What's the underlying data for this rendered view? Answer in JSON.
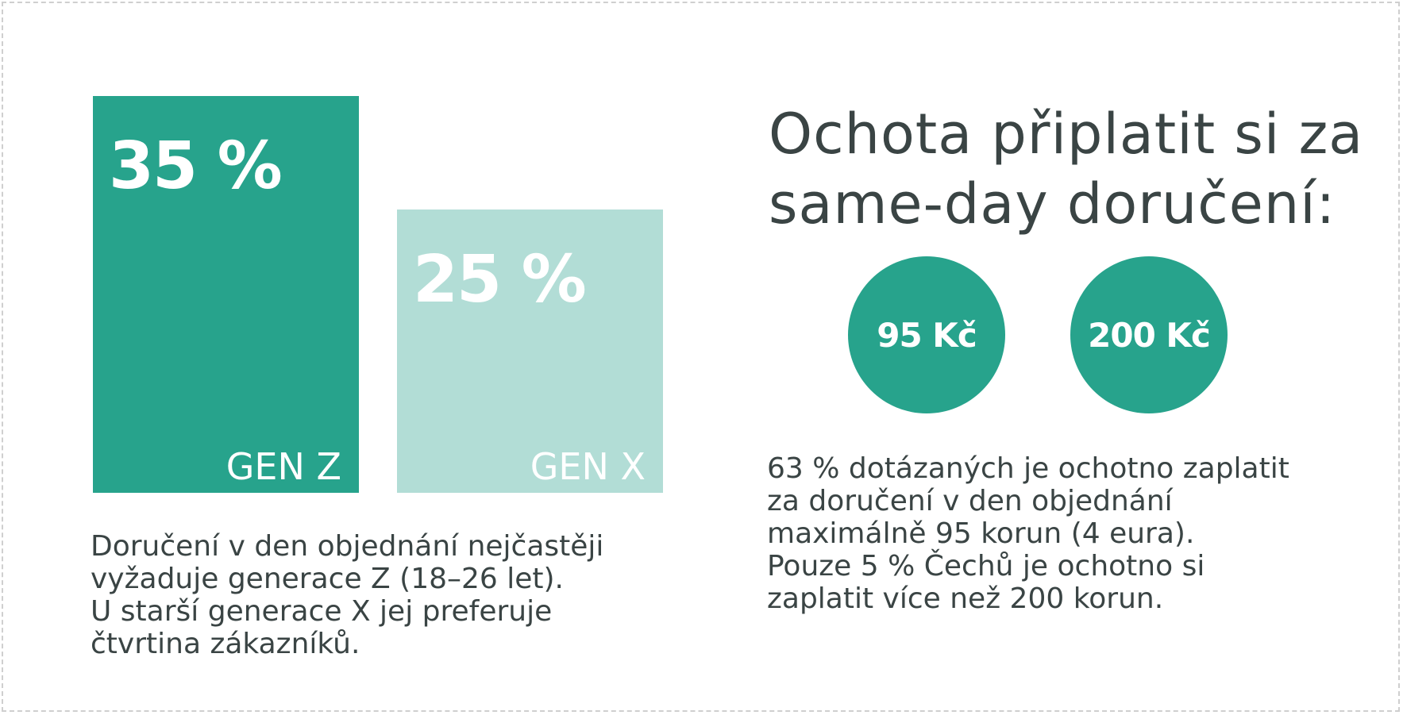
{
  "chart_data": {
    "type": "bar",
    "categories": [
      "GEN Z",
      "GEN X"
    ],
    "values": [
      35,
      25
    ],
    "value_labels": [
      "35 %",
      "25 %"
    ],
    "ylim": [
      0,
      35
    ],
    "colors": [
      "#27a38c",
      "#b2ddd6"
    ],
    "caption": [
      "Doručení v den objednání nejčastěji",
      "vyžaduje generace Z (18–26 let).",
      "U starší generace X jej preferuje",
      "čtvrtina zákazníků."
    ]
  },
  "title": [
    "Ochota připlatit si za",
    "same-day doručení:"
  ],
  "circles": [
    "95 Kč",
    "200 Kč"
  ],
  "circle_color": "#27a38c",
  "description": [
    "63 % dotázaných je ochotno zaplatit",
    "za doručení v den objednání",
    "maximálně 95 korun (4 eura).",
    "Pouze 5 % Čechů je ochotno si",
    "zaplatit více než 200 korun."
  ]
}
